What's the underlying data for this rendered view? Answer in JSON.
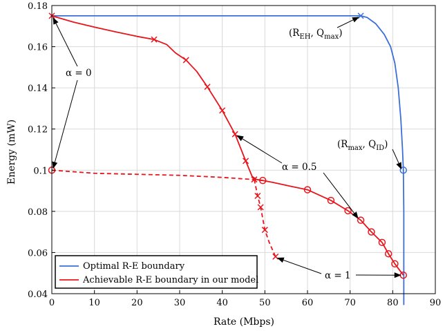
{
  "chart_data": {
    "type": "line",
    "xlabel": "Rate (Mbps)",
    "ylabel": "Energy (mW)",
    "xlim": [
      0,
      90
    ],
    "ylim": [
      0.04,
      0.18
    ],
    "x_ticks": [
      0,
      10,
      20,
      30,
      40,
      50,
      60,
      70,
      80,
      90
    ],
    "y_ticks": [
      0.04,
      0.06,
      0.08,
      0.1,
      0.12,
      0.14,
      0.16,
      0.18
    ],
    "x_tick_labels": [
      "0",
      "10",
      "20",
      "30",
      "40",
      "50",
      "60",
      "70",
      "80",
      "90"
    ],
    "y_tick_labels": [
      "0.04",
      "0.06",
      "0.08",
      "0.1",
      "0.12",
      "0.14",
      "0.16",
      "0.18"
    ],
    "grid": true,
    "legend_position": "bottom-left",
    "colors": {
      "optimal": "#3a6fd8",
      "achievable": "#e8141b"
    },
    "series": [
      {
        "name": "Optimal R-E boundary",
        "style": "solid",
        "color": "#3a6fd8",
        "x": [
          0,
          72.5,
          74,
          76,
          78,
          79.5,
          80.5,
          81.3,
          81.9,
          82.3,
          82.5,
          82.6,
          82.6
        ],
        "y": [
          0.175,
          0.175,
          0.1742,
          0.1712,
          0.166,
          0.16,
          0.152,
          0.14,
          0.125,
          0.11,
          0.1,
          0.08,
          0.0345
        ]
      },
      {
        "name": "Achievable R-E boundary in our model",
        "style": "solid",
        "color": "#e8141b",
        "x": [
          0,
          5,
          10,
          15,
          20,
          24,
          27,
          29,
          31.5,
          34,
          36.5,
          40,
          43,
          45.5,
          47,
          48,
          49.5,
          52,
          56,
          60,
          65.5,
          69.5,
          72.5,
          75,
          77.5,
          79,
          80.5,
          82.5
        ],
        "y": [
          0.175,
          0.172,
          0.1695,
          0.1672,
          0.165,
          0.1635,
          0.161,
          0.157,
          0.1535,
          0.148,
          0.1405,
          0.129,
          0.1175,
          0.1045,
          0.097,
          0.0955,
          0.095,
          0.094,
          0.0922,
          0.0905,
          0.0853,
          0.0803,
          0.0757,
          0.07,
          0.0649,
          0.0594,
          0.0545,
          0.049
        ]
      },
      {
        "name": "",
        "style": "dashed",
        "color": "#e8141b",
        "x": [
          0,
          10,
          20,
          30,
          40,
          47,
          49.5
        ],
        "y": [
          0.1,
          0.0985,
          0.098,
          0.0975,
          0.0965,
          0.0955,
          0.095
        ]
      },
      {
        "name": "",
        "style": "dashed",
        "color": "#e8141b",
        "x": [
          47.5,
          48.3,
          49,
          50,
          51,
          52.5
        ],
        "y": [
          0.0955,
          0.0875,
          0.082,
          0.071,
          0.065,
          0.058
        ]
      }
    ],
    "markers_x": {
      "color": "#e8141b",
      "points": [
        [
          24,
          0.1635
        ],
        [
          31.5,
          0.1535
        ],
        [
          36.5,
          0.1405
        ],
        [
          40,
          0.129
        ],
        [
          43,
          0.1175
        ],
        [
          45.5,
          0.1045
        ],
        [
          47.5,
          0.0955
        ],
        [
          48.3,
          0.0875
        ],
        [
          49,
          0.082
        ],
        [
          50,
          0.071
        ],
        [
          52.5,
          0.058
        ]
      ]
    },
    "markers_circle": {
      "color": "#e8141b",
      "points": [
        [
          0,
          0.1
        ],
        [
          49.5,
          0.095
        ],
        [
          60,
          0.0905
        ],
        [
          65.5,
          0.0853
        ],
        [
          69.5,
          0.0803
        ],
        [
          72.5,
          0.0757
        ],
        [
          75,
          0.07
        ],
        [
          77.5,
          0.0649
        ],
        [
          79,
          0.0594
        ],
        [
          80.5,
          0.0545
        ],
        [
          82.5,
          0.049
        ]
      ]
    },
    "special_markers": [
      {
        "shape": "x",
        "color": "#3a6fd8",
        "x": 72.5,
        "y": 0.175
      },
      {
        "shape": "x",
        "color": "#e8141b",
        "x": 0,
        "y": 0.175
      },
      {
        "shape": "circle",
        "color": "#3a6fd8",
        "x": 82.5,
        "y": 0.1
      }
    ],
    "annotations": [
      {
        "text": "(R",
        "sub1": "EH",
        "mid": ", Q",
        "sub2": "max",
        "end": ")",
        "at_x": 72.5,
        "at_y": 0.175
      },
      {
        "text": "(R",
        "sub1": "max",
        "mid": ", Q",
        "sub2": "ID",
        "end": ")",
        "at_x": 82.5,
        "at_y": 0.1
      },
      {
        "text": "α = 0",
        "targets": [
          [
            0,
            0.175
          ],
          [
            0,
            0.1
          ]
        ]
      },
      {
        "text": "α = 0.5",
        "targets": [
          [
            43,
            0.1175
          ],
          [
            72.5,
            0.0757
          ]
        ]
      },
      {
        "text": "α = 1",
        "targets": [
          [
            52.5,
            0.058
          ],
          [
            82.5,
            0.049
          ]
        ]
      }
    ]
  }
}
